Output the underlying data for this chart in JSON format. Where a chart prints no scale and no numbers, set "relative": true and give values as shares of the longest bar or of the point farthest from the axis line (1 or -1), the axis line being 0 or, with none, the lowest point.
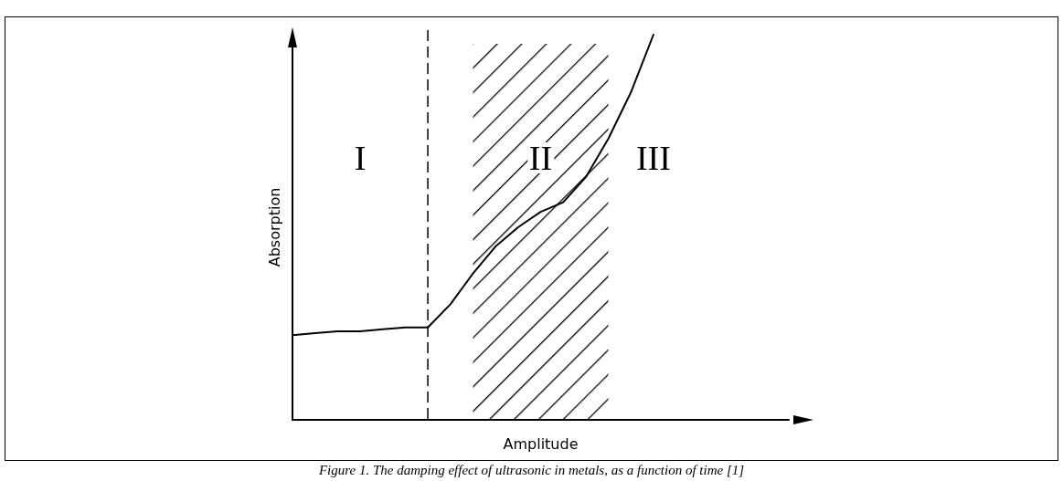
{
  "chart_data": {
    "type": "line",
    "relative": true,
    "xlabel": "Amplitude",
    "ylabel": "Absorption",
    "categories": [
      null,
      null,
      null,
      null,
      null,
      null,
      null,
      null,
      null,
      null,
      null,
      null,
      null,
      null,
      null,
      null,
      null,
      null,
      null,
      null,
      null,
      null,
      null
    ],
    "series": [
      {
        "color": "#000000",
        "values": [
          0.22,
          0.225,
          0.23,
          0.23,
          0.235,
          0.24,
          0.24,
          0.3,
          0.38,
          0.45,
          0.5,
          0.54,
          0.565,
          0.63,
          0.73,
          0.85,
          1,
          null,
          null,
          null,
          null,
          null,
          null
        ]
      }
    ],
    "grid": false,
    "marker": "none",
    "line_style": "solid",
    "annotations": [
      "I",
      "II",
      "III",
      "Figure 1. The damping effect of ultrasonic in metals, as a function of time [1]"
    ]
  }
}
